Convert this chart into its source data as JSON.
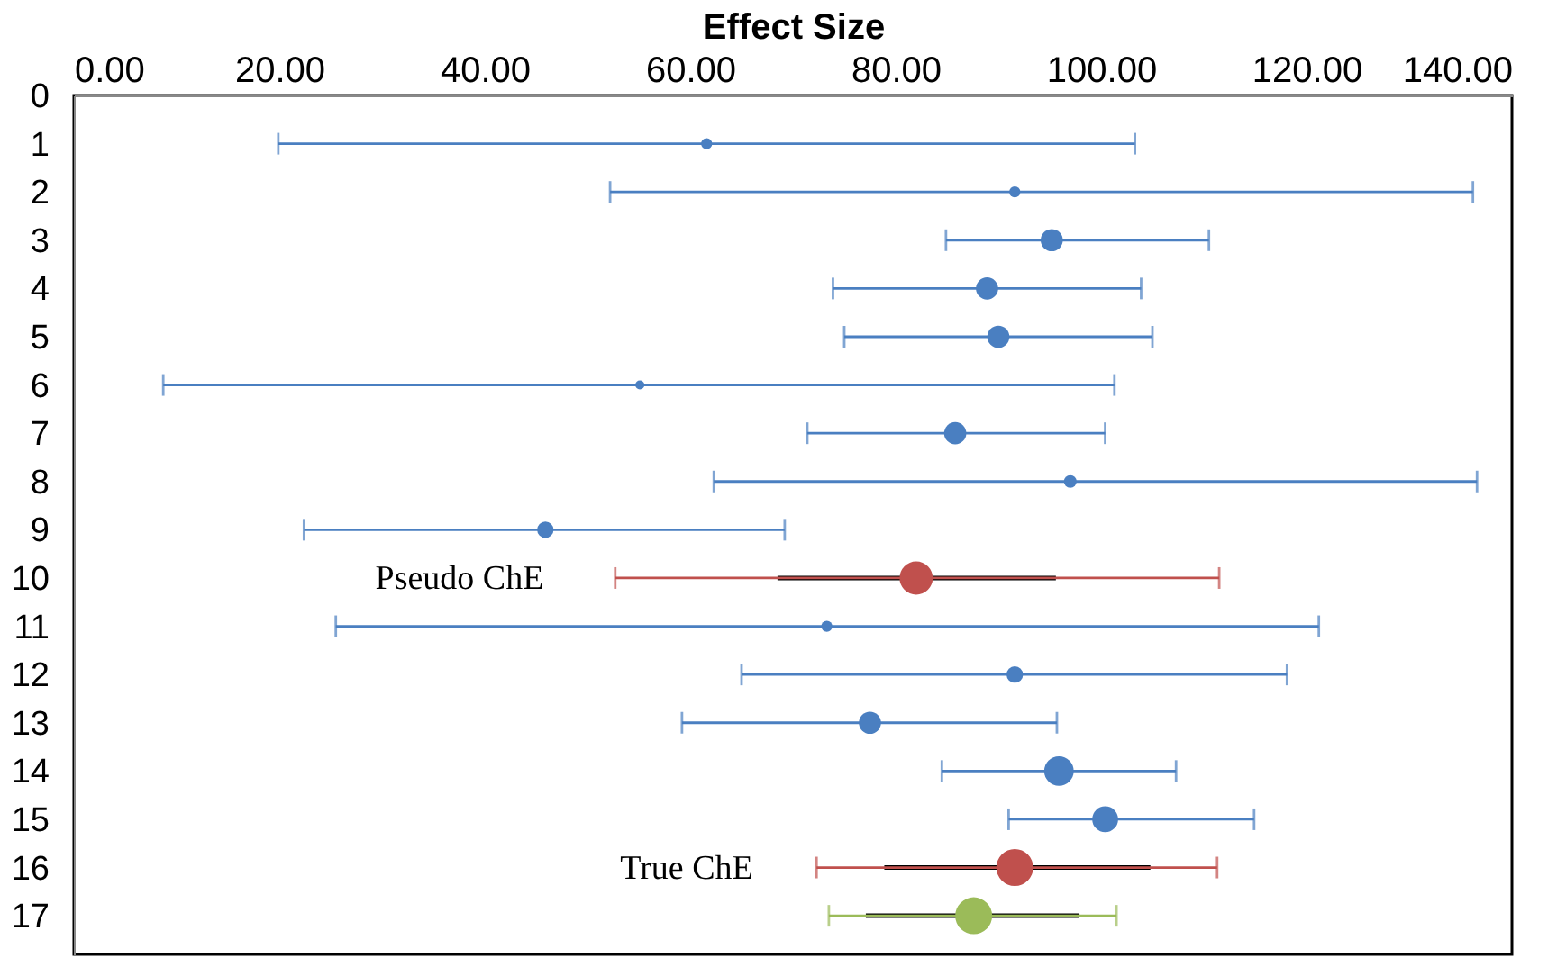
{
  "chart_data": {
    "type": "bubble",
    "xlabel": "Effect Size",
    "xlim": [
      0,
      140
    ],
    "xticks": [
      {
        "value": 0,
        "label": "0.00"
      },
      {
        "value": 20,
        "label": "20.00"
      },
      {
        "value": 40,
        "label": "40.00"
      },
      {
        "value": 60,
        "label": "60.00"
      },
      {
        "value": 80,
        "label": "80.00"
      },
      {
        "value": 100,
        "label": "100.00"
      },
      {
        "value": 120,
        "label": "120.00"
      },
      {
        "value": 140,
        "label": "140.00"
      }
    ],
    "ylim": [
      17.8,
      0
    ],
    "yticks": [
      0,
      1,
      2,
      3,
      4,
      5,
      6,
      7,
      8,
      9,
      10,
      11,
      12,
      13,
      14,
      15,
      16,
      17
    ],
    "grid": false,
    "marker": "circle",
    "series": [
      {
        "color": "#4a7fc1",
        "x": [
          61.6,
          91.6,
          95.2,
          88.9,
          90.0,
          55.1,
          85.8,
          97.0,
          45.9,
          73.3,
          91.6,
          77.5,
          95.9,
          100.4
        ],
        "values": [
          1,
          2,
          3,
          4,
          5,
          6,
          7,
          8,
          9,
          11,
          12,
          13,
          14,
          15
        ],
        "xerrors": [
          [
            19.9,
            103.3
          ],
          [
            52.2,
            136.2
          ],
          [
            84.9,
            110.5
          ],
          [
            73.9,
            103.9
          ],
          [
            75.0,
            105.0
          ],
          [
            8.7,
            101.3
          ],
          [
            71.4,
            100.4
          ],
          [
            62.3,
            136.6
          ],
          [
            22.4,
            69.2
          ],
          [
            25.5,
            121.2
          ],
          [
            65.0,
            118.1
          ],
          [
            59.2,
            95.7
          ],
          [
            84.5,
            107.3
          ],
          [
            91.0,
            114.9
          ]
        ],
        "sizes": [
          0.09,
          0.09,
          0.36,
          0.36,
          0.36,
          0.06,
          0.36,
          0.12,
          0.2,
          0.09,
          0.2,
          0.36,
          0.64,
          0.49
        ]
      },
      {
        "type": "line",
        "marker": "none",
        "color": "#000000",
        "x": [
          68.5,
          95.6
        ],
        "values": [
          10,
          10
        ]
      },
      {
        "type": "line",
        "marker": "none",
        "color": "#000000",
        "x": [
          78.9,
          104.8
        ],
        "values": [
          16,
          16
        ]
      },
      {
        "type": "line",
        "marker": "none",
        "color": "#000000",
        "x": [
          77.1,
          97.9
        ],
        "values": [
          17,
          17
        ]
      },
      {
        "color": "#c0504d",
        "x": [
          82.0,
          91.6
        ],
        "values": [
          10,
          16
        ],
        "xerrors": [
          [
            52.7,
            111.5
          ],
          [
            72.3,
            111.3
          ]
        ],
        "sizes": [
          0.81,
          1
        ]
      },
      {
        "color": "#9bbb59",
        "x": [
          87.6
        ],
        "values": [
          17
        ],
        "xerrors": [
          [
            73.5,
            101.5
          ]
        ],
        "sizes": [
          1
        ]
      }
    ],
    "annotations": [
      "Pseudo ChE",
      "True ChE"
    ]
  }
}
